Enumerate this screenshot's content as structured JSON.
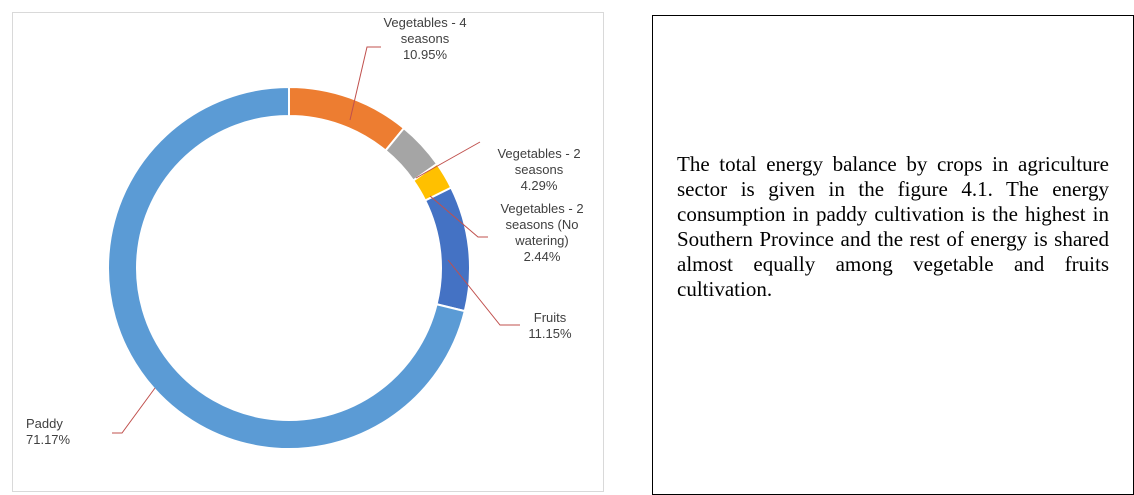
{
  "chart_data": {
    "type": "donut",
    "categories": [
      "Vegetables - 4 seasons",
      "Vegetables - 2 seasons",
      "Vegetables - 2 seasons (No watering)",
      "Fruits",
      "Paddy"
    ],
    "values": [
      10.95,
      4.29,
      2.44,
      11.15,
      71.17
    ],
    "value_labels": [
      "10.95%",
      "4.29%",
      "2.44%",
      "11.15%",
      "71.17%"
    ],
    "colors": [
      "#ed7d31",
      "#a5a5a5",
      "#ffc000",
      "#4472c4",
      "#5b9bd5"
    ]
  },
  "text": {
    "body": "The total energy balance by crops in agriculture sector is given in the figure 4.1. The energy consumption in paddy cultivation is the highest in Southern Province and the rest of energy is shared almost equally among vegetable and fruits cultivation."
  }
}
